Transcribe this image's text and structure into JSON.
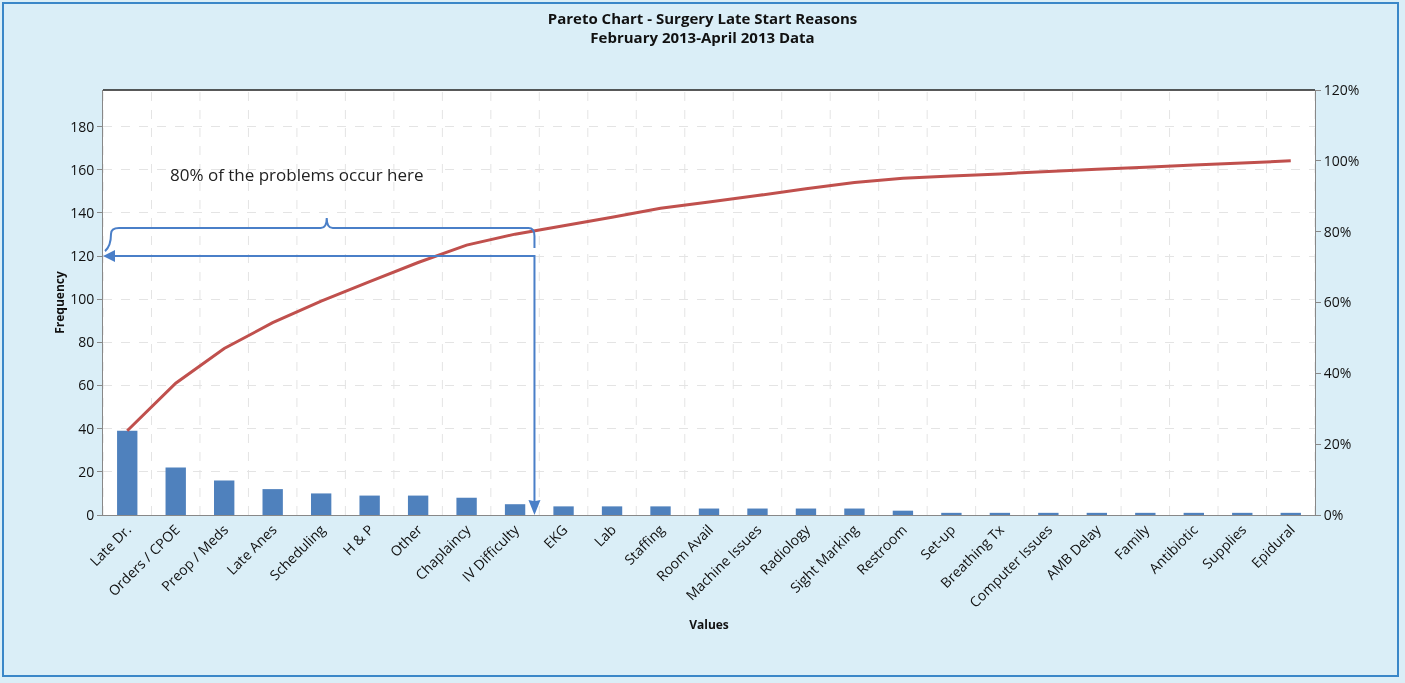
{
  "chart_data": {
    "type": "bar",
    "title": "Pareto Chart - Surgery Late Start Reasons",
    "subtitle": "February 2013-April 2013 Data",
    "xlabel": "Values",
    "ylabel": "Frequency",
    "categories": [
      "Late Dr.",
      "Orders / CPOE",
      "Preop / Meds",
      "Late Anes",
      "Scheduling",
      "H & P",
      "Other",
      "Chaplaincy",
      "IV Difficulty",
      "EKG",
      "Lab",
      "Staffing",
      "Room Avail",
      "Machine Issues",
      "Radiology",
      "Sight Marking",
      "Restroom",
      "Set-up",
      "Breathing Tx",
      "Computer Issues",
      "AMB Delay",
      "Family",
      "Antibiotic",
      "Supplies",
      "Epidural"
    ],
    "series": [
      {
        "color": "#4f81bd",
        "values": [
          39,
          22,
          16,
          12,
          10,
          9,
          9,
          8,
          5,
          4,
          4,
          4,
          3,
          3,
          3,
          3,
          2,
          1,
          1,
          1,
          1,
          1,
          1,
          1,
          1
        ]
      },
      {
        "type": "line",
        "axis": "y2",
        "color": "#c0504d",
        "values": [
          23.8,
          37.2,
          47.0,
          54.3,
          60.4,
          65.9,
          71.3,
          76.2,
          79.3,
          81.7,
          84.1,
          86.6,
          88.4,
          90.2,
          92.1,
          93.9,
          95.1,
          95.7,
          96.3,
          97.0,
          97.6,
          98.2,
          98.8,
          99.4,
          100
        ]
      }
    ],
    "ylim": [
      0,
      197
    ],
    "yticks": [
      0,
      20,
      40,
      60,
      80,
      100,
      120,
      140,
      160,
      180
    ],
    "y2lim": [
      0,
      120
    ],
    "y2ticks": [
      {
        "value": 0,
        "label": "0%"
      },
      {
        "value": 20,
        "label": "20%"
      },
      {
        "value": 40,
        "label": "40%"
      },
      {
        "value": 60,
        "label": "60%"
      },
      {
        "value": 80,
        "label": "80%"
      },
      {
        "value": 100,
        "label": "100%"
      },
      {
        "value": 120,
        "label": "120%"
      }
    ],
    "grid": true,
    "legend": false,
    "marker": "none",
    "line_style": "solid",
    "annotations": [
      "80% of the problems occur here"
    ]
  }
}
